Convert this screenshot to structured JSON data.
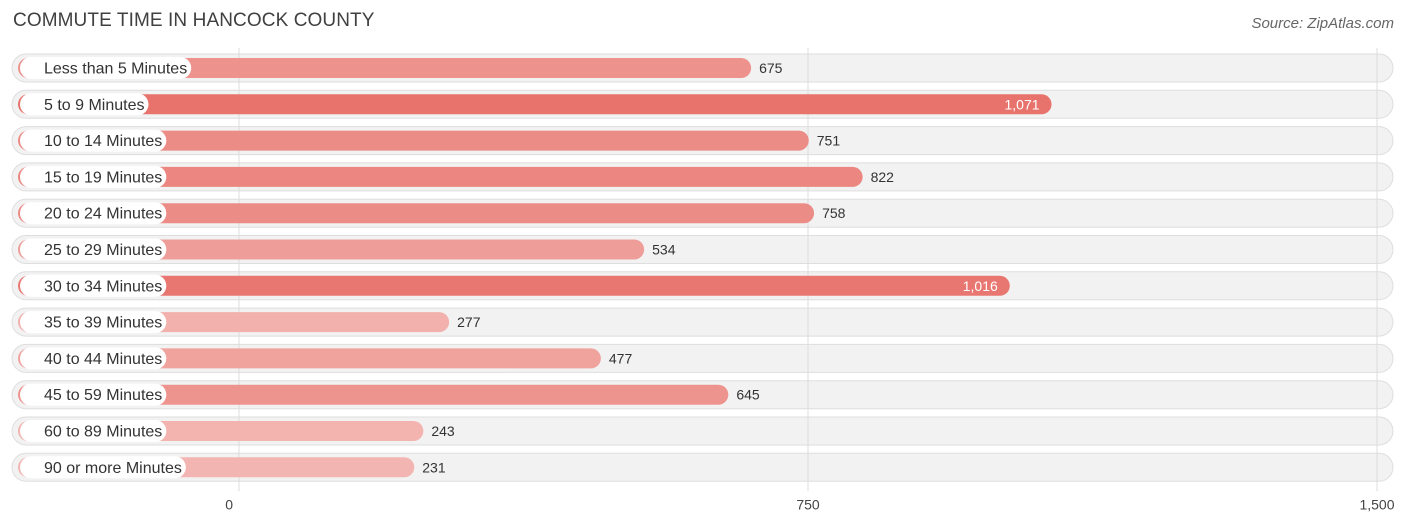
{
  "header": {
    "title": "COMMUTE TIME IN HANCOCK COUNTY",
    "source": "Source: ZipAtlas.com"
  },
  "chart_data": {
    "type": "bar",
    "orientation": "horizontal",
    "title": "COMMUTE TIME IN HANCOCK COUNTY",
    "categories": [
      "Less than 5 Minutes",
      "5 to 9 Minutes",
      "10 to 14 Minutes",
      "15 to 19 Minutes",
      "20 to 24 Minutes",
      "25 to 29 Minutes",
      "30 to 34 Minutes",
      "35 to 39 Minutes",
      "40 to 44 Minutes",
      "45 to 59 Minutes",
      "60 to 89 Minutes",
      "90 or more Minutes"
    ],
    "values": [
      675,
      1071,
      751,
      822,
      758,
      534,
      1016,
      277,
      477,
      645,
      243,
      231
    ],
    "value_labels": [
      "675",
      "1,071",
      "751",
      "822",
      "758",
      "534",
      "1,016",
      "277",
      "477",
      "645",
      "243",
      "231"
    ],
    "xlim": [
      0,
      1500
    ],
    "ticks": [
      0,
      750,
      1500
    ],
    "tick_labels": [
      "0",
      "750",
      "1,500"
    ],
    "grid": true,
    "legend": "none",
    "colors": {
      "bar_max": "#e8736c",
      "bar_min": "#f3b5b1",
      "row_bg": "#f2f2f2"
    }
  }
}
